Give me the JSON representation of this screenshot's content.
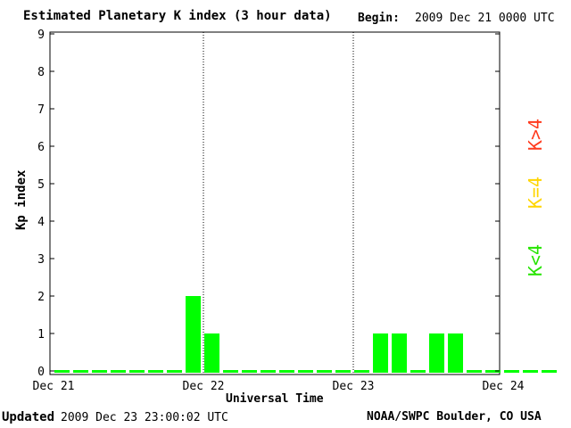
{
  "header": {
    "title": "Estimated Planetary K index (3 hour data)",
    "begin_label": "Begin:",
    "begin_value": "2009 Dec 21 0000 UTC"
  },
  "footer": {
    "updated_label": "Updated",
    "updated_value": "2009 Dec 23 23:00:02 UTC",
    "credit": "NOAA/SWPC Boulder, CO USA"
  },
  "legend": {
    "high": "K>4",
    "mid": "K=4",
    "low": "K<4",
    "colors": {
      "high": "#ff3a1d",
      "mid": "#ffd500",
      "low": "#26e400"
    }
  },
  "chart_data": {
    "type": "bar",
    "title": "Estimated Planetary K index (3 hour data)",
    "xlabel": "Universal Time",
    "ylabel": "Kp index",
    "ylim": [
      0,
      9
    ],
    "y_ticks": [
      "0",
      "1",
      "2",
      "3",
      "4",
      "5",
      "6",
      "7",
      "8",
      "9"
    ],
    "x_ticks": [
      "Dec 21",
      "Dec 22",
      "Dec 23",
      "Dec 24"
    ],
    "day_dividers": [
      "Dec 22",
      "Dec 23"
    ],
    "bar_color": "#00ff00",
    "interval_hours": 3,
    "start": "2009 Dec 21 0000 UTC",
    "values": [
      0,
      0,
      0,
      0,
      0,
      0,
      0,
      2,
      1,
      0,
      0,
      0,
      0,
      0,
      0,
      0,
      0,
      1,
      1,
      0,
      1,
      1,
      0,
      0,
      0,
      0,
      0
    ],
    "grid": false
  }
}
